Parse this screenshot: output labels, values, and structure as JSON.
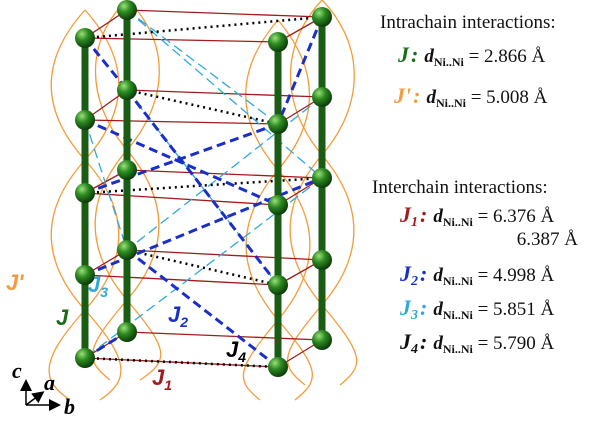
{
  "figure": {
    "labels": {
      "j_prime": "J'",
      "j": "J",
      "j3": {
        "symbol": "J",
        "sub": "3"
      },
      "j2": {
        "symbol": "J",
        "sub": "2"
      },
      "j4": {
        "symbol": "J",
        "sub": "4"
      },
      "j1": {
        "symbol": "J",
        "sub": "1"
      }
    },
    "axes": {
      "c": "c",
      "a": "a",
      "b": "b"
    }
  },
  "intrachain": {
    "title": "Intrachain interactions:",
    "rows": [
      {
        "symbol": "J",
        "colon": ":",
        "d": "d",
        "d_sub": "Ni..Ni",
        "value": " = 2.866 Å"
      },
      {
        "symbol": "J'",
        "colon": ":",
        "d": "d",
        "d_sub": "Ni..Ni",
        "value": " = 5.008 Å"
      }
    ]
  },
  "interchain": {
    "title": "Interchain interactions:",
    "rows": [
      {
        "symbol": "J",
        "sub": "1",
        "colon": ":",
        "d": "d",
        "d_sub": "Ni..Ni",
        "value": " = 6.376 Å",
        "value2": "6.387 Å"
      },
      {
        "symbol": "J",
        "sub": "2",
        "colon": ":",
        "d": "d",
        "d_sub": "Ni..Ni",
        "value": " = 4.998 Å"
      },
      {
        "symbol": "J",
        "sub": "3",
        "colon": ":",
        "d": "d",
        "d_sub": "Ni..Ni",
        "value": " = 5.851 Å"
      },
      {
        "symbol": "J",
        "sub": "4",
        "colon": ":",
        "d": "d",
        "d_sub": "Ni..Ni",
        "value": " = 5.790 Å"
      }
    ]
  }
}
